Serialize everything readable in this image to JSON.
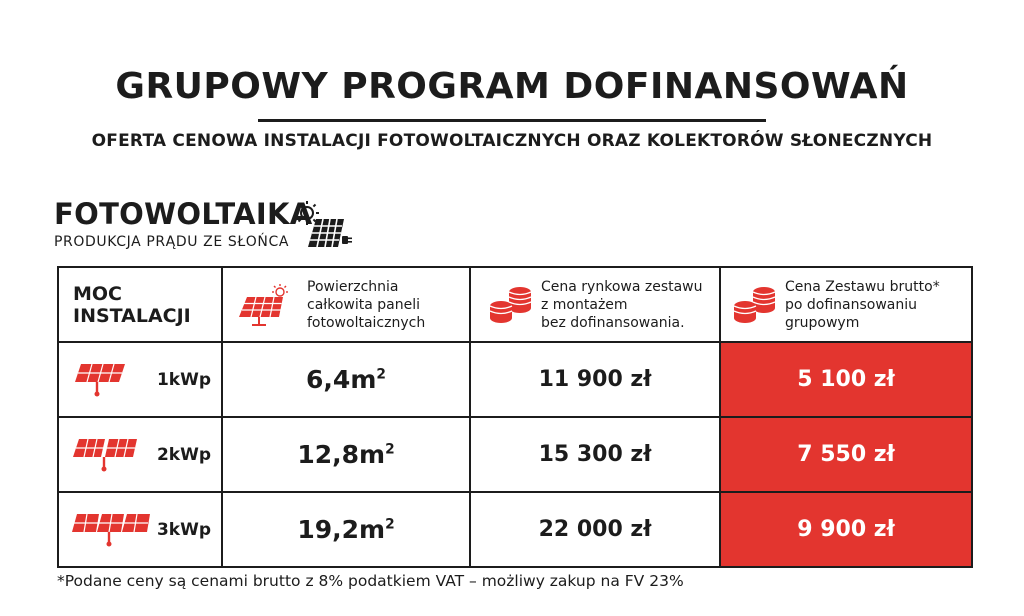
{
  "title": "GRUPOWY PROGRAM DOFINANSOWAŃ",
  "subtitle": "OFERTA CENOWA INSTALACJI FOTOWOLTAICZNYCH ORAZ KOLEKTORÓW SŁONECZNYCH",
  "brand": {
    "name": "FOTOWOLTAIKA",
    "tagline": "PRODUKCJA PRĄDU ZE SŁOŃCA",
    "icon": "sun-solar-panel-plug-icon"
  },
  "table": {
    "headers": {
      "power_line1": "MOC",
      "power_line2": "INSTALACJI",
      "area_line1": "Powierzchnia",
      "area_line2": "całkowita paneli",
      "area_line3": "fotowoltaicznych",
      "market_line1": "Cena rynkowa zestawu",
      "market_line2": "z montażem",
      "market_line3": "bez dofinansowania.",
      "promo_line1": "Cena Zestawu brutto*",
      "promo_line2": "po dofinansowaniu",
      "promo_line3": "grupowym"
    },
    "header_icons": {
      "area": "solar-panel-sun-icon",
      "market": "coins-icon",
      "promo": "coins-icon"
    },
    "rows": [
      {
        "power": "1kWp",
        "area": "6,4m",
        "area_sup": "2",
        "market_price": "11 900 zł",
        "promo_price": "5 100 zł",
        "panels": 1
      },
      {
        "power": "2kWp",
        "area": "12,8m",
        "area_sup": "2",
        "market_price": "15 300 zł",
        "promo_price": "7 550 zł",
        "panels": 2
      },
      {
        "power": "3kWp",
        "area": "19,2m",
        "area_sup": "2",
        "market_price": "22 000 zł",
        "promo_price": "9 900 zł",
        "panels": 3
      }
    ]
  },
  "footnote": "*Podane ceny są cenami brutto z 8% podatkiem VAT – możliwy zakup na FV 23%",
  "colors": {
    "accent": "#e3352f",
    "text": "#1c1c1c"
  }
}
